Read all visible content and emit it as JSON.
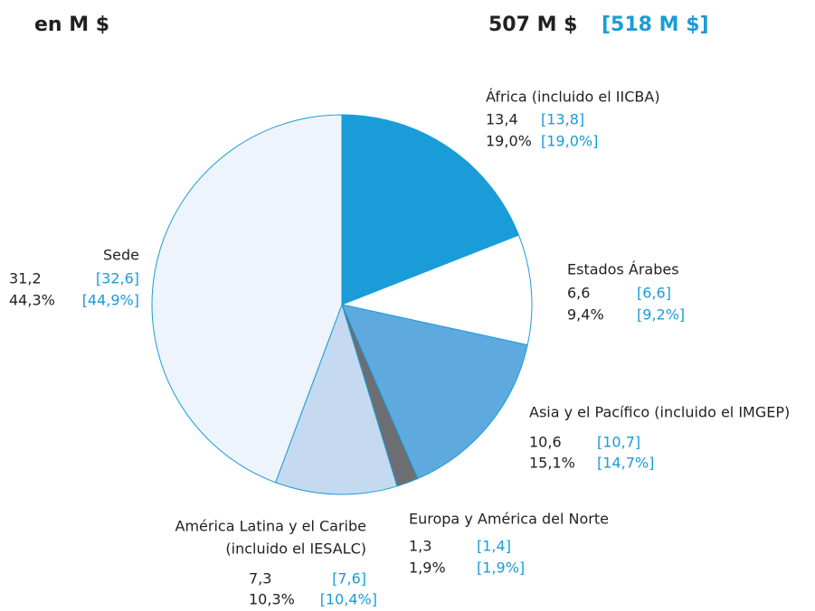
{
  "chart_data": {
    "type": "pie",
    "unit_label": "en M $",
    "title": "507 M $",
    "title_prior": "[518 M $]",
    "categories": [
      [
        "África (incluido el IICBA)"
      ],
      [
        "Estados Árabes"
      ],
      [
        "Asia y el Pacífico (incluido el IMGEP)"
      ],
      [
        "Europa y América del Norte"
      ],
      [
        "América Latina y el Caribe",
        "(incluido el IESALC)"
      ],
      [
        "Sede"
      ]
    ],
    "values": [
      13.4,
      6.6,
      10.6,
      1.3,
      7.3,
      31.2
    ],
    "value_labels": [
      "13,4",
      "6,6",
      "10,6",
      "1,3",
      "7,3",
      "31,2"
    ],
    "percent_labels": [
      "19,0%",
      "9,4%",
      "15,1%",
      "1,9%",
      "10,3%",
      "44,3%"
    ],
    "prior_value_labels": [
      "[13,8]",
      "[6,6]",
      "[10,7]",
      "[1,4]",
      "[7,6]",
      "[32,6]"
    ],
    "prior_percent_labels": [
      "[19,0%]",
      "[9,2%]",
      "[14,7%]",
      "[1,9%]",
      "[10,4%]",
      "[44,9%]"
    ],
    "colors": [
      "#1a9cd8",
      "#ffffff",
      "#5eaadf",
      "#6d6e71",
      "#c5daf0",
      "#eef4fb"
    ],
    "stroke_color": "#1a9cd8",
    "prior_color": "#1a9cd8"
  }
}
